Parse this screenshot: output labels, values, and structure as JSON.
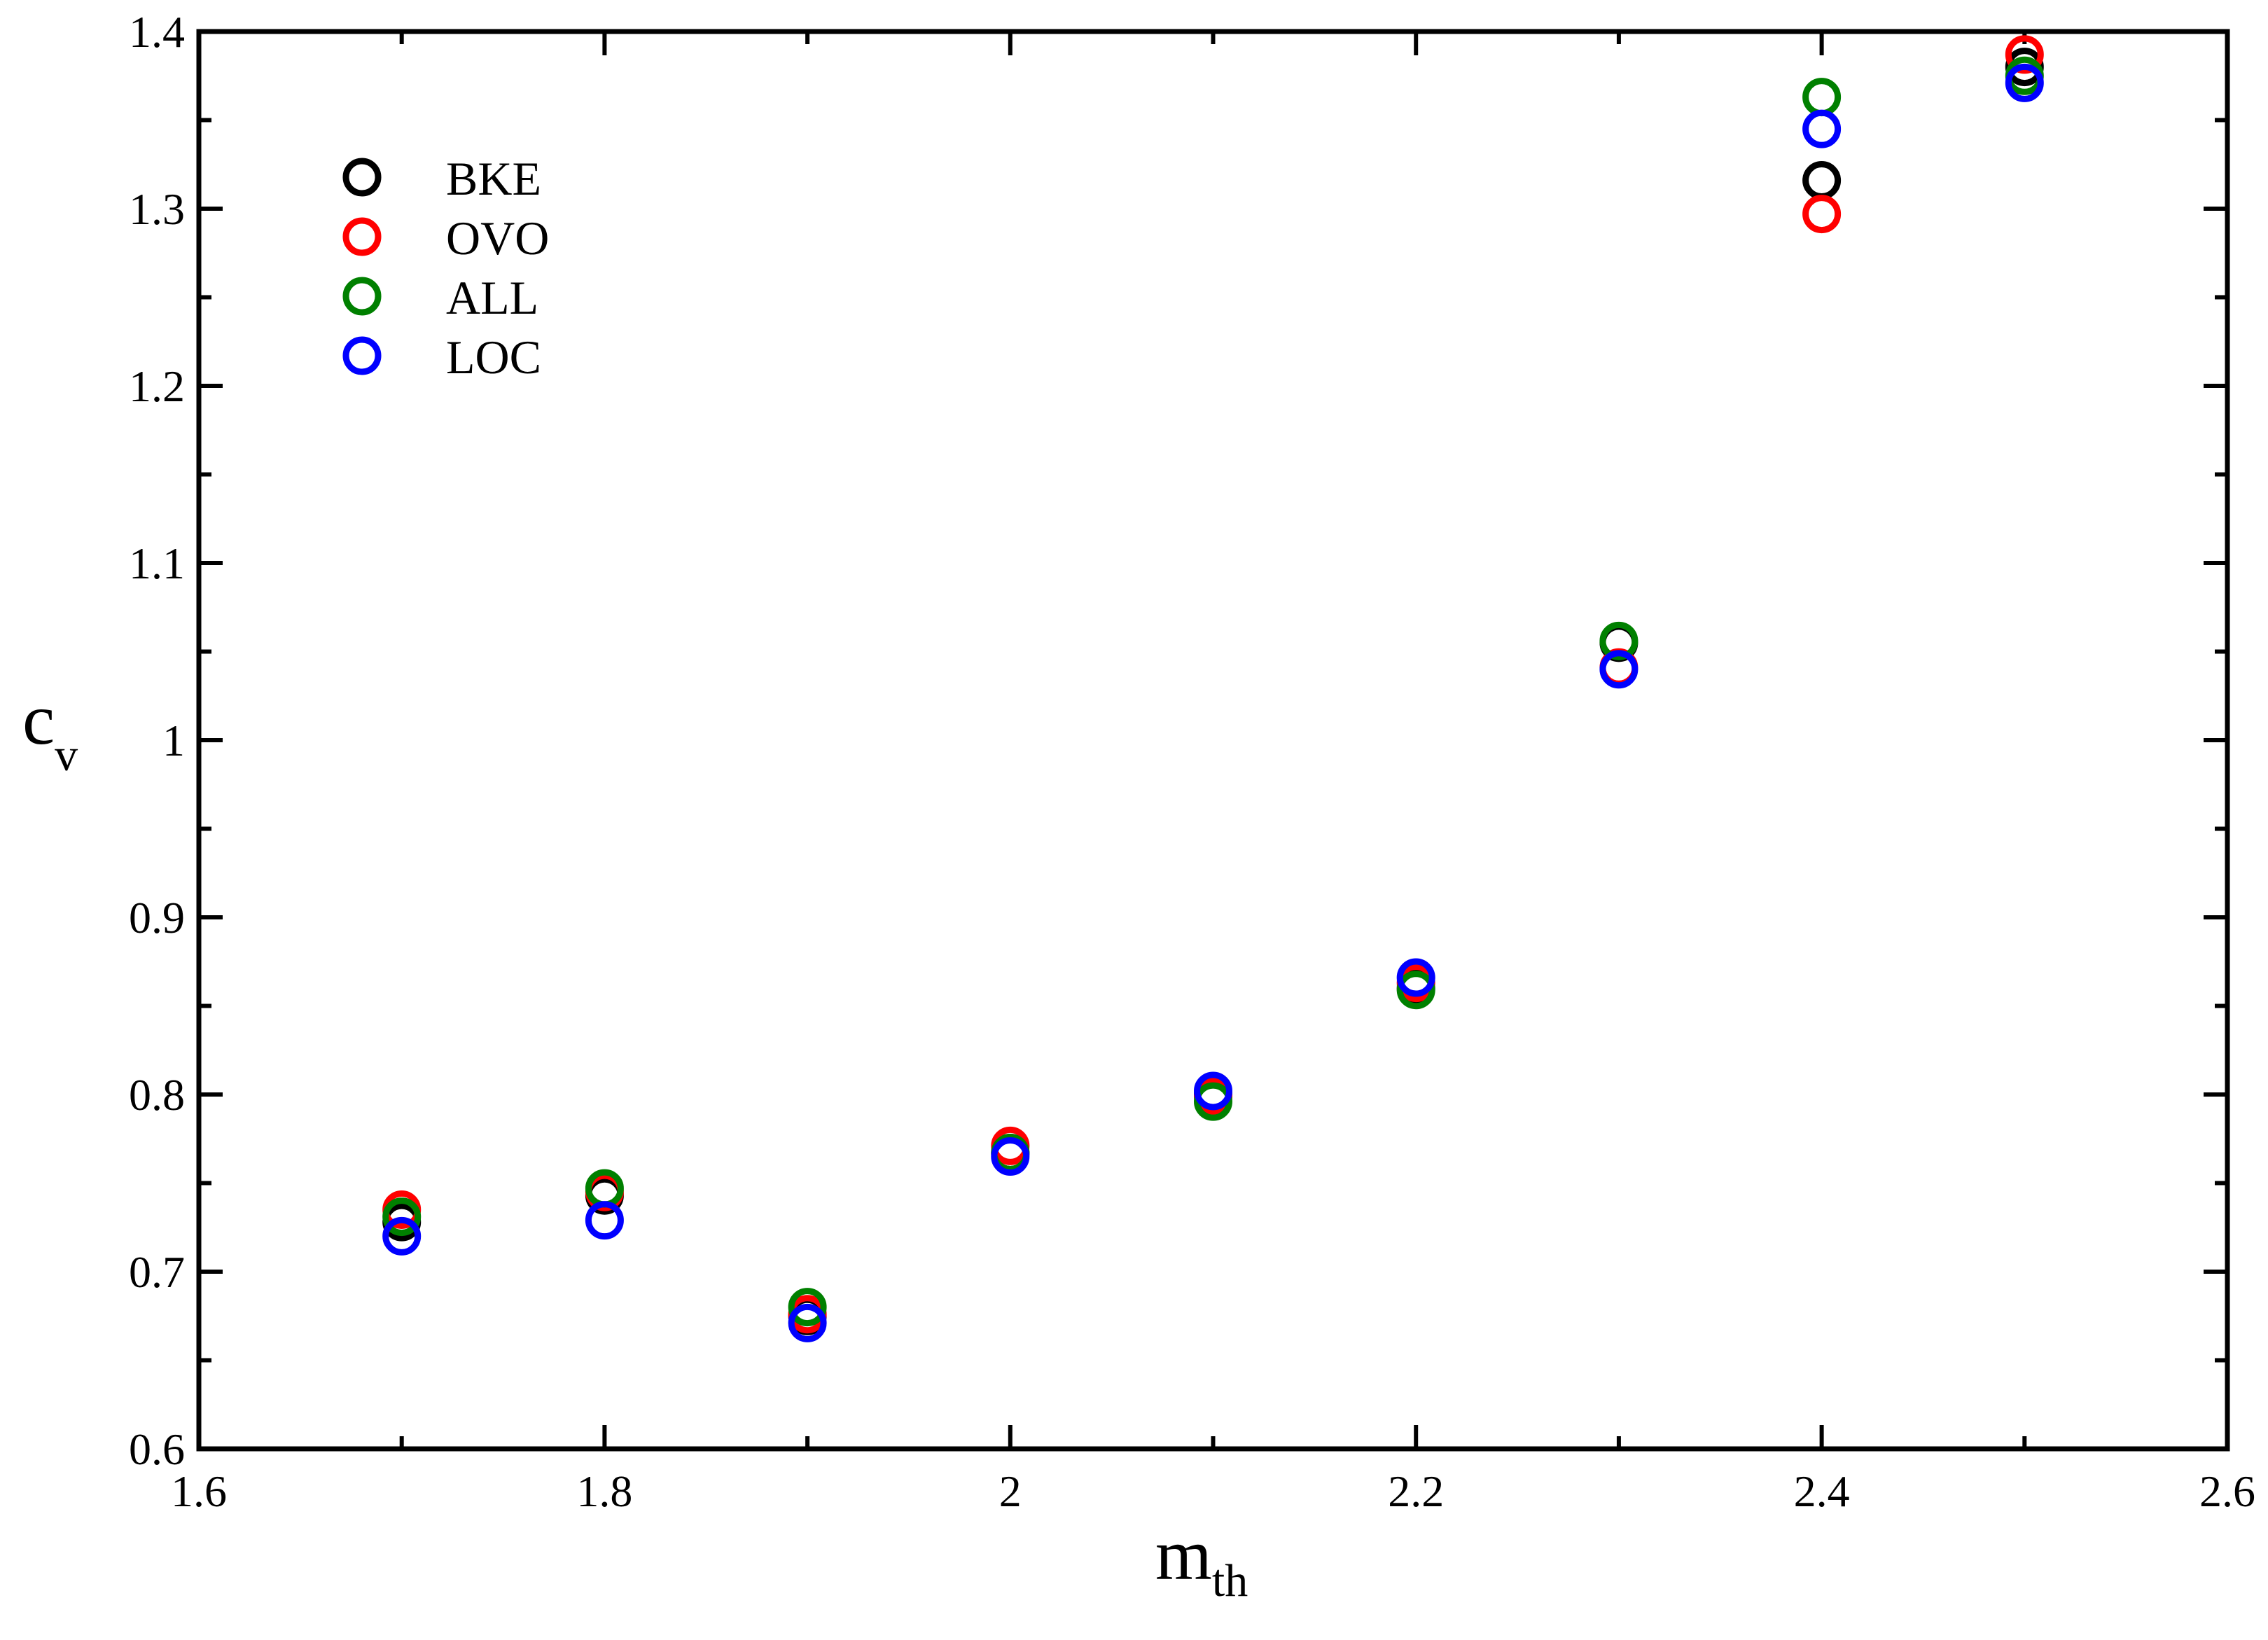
{
  "chart_data": {
    "type": "scatter",
    "title": "",
    "xlabel": {
      "main": "m",
      "sub": "th"
    },
    "ylabel": {
      "main": "c",
      "sub": "v"
    },
    "xlim": [
      1.6,
      2.6
    ],
    "ylim": [
      0.6,
      1.4
    ],
    "x_ticks": [
      "1.6",
      "1.8",
      "2",
      "2.2",
      "2.4",
      "2.6"
    ],
    "y_ticks": [
      "0.6",
      "0.7",
      "0.8",
      "0.9",
      "1",
      "1.1",
      "1.2",
      "1.3",
      "1.4"
    ],
    "x_tick_values": [
      1.6,
      1.8,
      2.0,
      2.2,
      2.4,
      2.6
    ],
    "y_tick_values": [
      0.6,
      0.7,
      0.8,
      0.9,
      1.0,
      1.1,
      1.2,
      1.3,
      1.4
    ],
    "x_minor_step": 0.1,
    "y_minor_step": 0.05,
    "grid": false,
    "marker": "open-circle",
    "legend_position": "top-left",
    "x": [
      1.7,
      1.8,
      1.9,
      2.0,
      2.1,
      2.2,
      2.3,
      2.4,
      2.5
    ],
    "series": [
      {
        "name": "BKE",
        "color": "#000000",
        "values": [
          0.728,
          0.743,
          0.675,
          0.767,
          0.8,
          0.86,
          1.055,
          1.316,
          1.38
        ]
      },
      {
        "name": "OVO",
        "color": "#ff0000",
        "values": [
          0.735,
          0.745,
          0.676,
          0.771,
          0.799,
          0.863,
          1.041,
          1.297,
          1.387
        ]
      },
      {
        "name": "ALL",
        "color": "#008000",
        "values": [
          0.731,
          0.747,
          0.68,
          0.767,
          0.796,
          0.859,
          1.056,
          1.363,
          1.375
        ]
      },
      {
        "name": "LOC",
        "color": "#0000ff",
        "values": [
          0.72,
          0.729,
          0.671,
          0.765,
          0.802,
          0.866,
          1.04,
          1.345,
          1.371
        ]
      }
    ]
  }
}
